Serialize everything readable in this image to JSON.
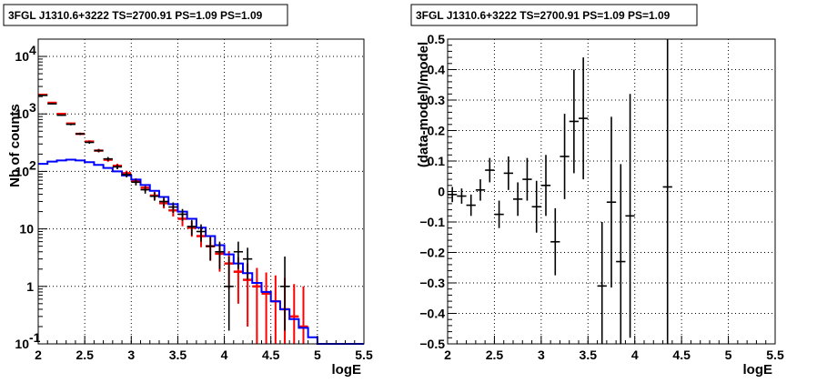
{
  "chart_data": [
    {
      "type": "line",
      "title": "3FGL J1310.6+3222 TS=2700.91 PS=1.09 PS=1.09",
      "xlabel": "logE",
      "ylabel": "Nb of counts",
      "xlim": [
        2,
        5.5
      ],
      "ylim": [
        0.1,
        20000
      ],
      "yscale": "log",
      "grid": true,
      "xticks": [
        "2",
        "2.5",
        "3",
        "3.5",
        "4",
        "4.5",
        "5",
        "5.5"
      ],
      "yticks": [
        {
          "value": 0.1,
          "label": "10",
          "exp": "-1"
        },
        {
          "value": 1,
          "label": "1",
          "exp": ""
        },
        {
          "value": 10,
          "label": "10",
          "exp": ""
        },
        {
          "value": 100,
          "label": "10",
          "exp": "2"
        },
        {
          "value": 1000,
          "label": "10",
          "exp": "3"
        },
        {
          "value": 10000,
          "label": "10",
          "exp": "4"
        }
      ],
      "bin_edges": [
        2.0,
        2.1,
        2.2,
        2.3,
        2.4,
        2.5,
        2.6,
        2.7,
        2.8,
        2.9,
        3.0,
        3.1,
        3.2,
        3.3,
        3.4,
        3.5,
        3.6,
        3.7,
        3.8,
        3.9,
        4.0,
        4.1,
        4.2,
        4.3,
        4.4,
        4.5,
        4.6,
        4.7,
        4.8,
        4.9,
        5.0,
        5.1,
        5.2,
        5.3,
        5.4,
        5.5
      ],
      "series": [
        {
          "role": "data",
          "color": "#000000",
          "x": [
            2.05,
            2.15,
            2.25,
            2.35,
            2.45,
            2.55,
            2.65,
            2.75,
            2.85,
            2.95,
            3.05,
            3.15,
            3.25,
            3.35,
            3.45,
            3.55,
            3.65,
            3.75,
            3.85,
            3.95,
            4.05,
            4.15,
            4.25,
            4.35,
            4.45,
            4.55,
            4.65,
            4.75,
            4.85
          ],
          "y": [
            2100,
            1500,
            950,
            660,
            450,
            320,
            230,
            165,
            120,
            88,
            65,
            48,
            37,
            30,
            24,
            18,
            11,
            9,
            5,
            4,
            1,
            4,
            3,
            1,
            1,
            1,
            1,
            1,
            1
          ],
          "err_low": [
            46,
            39,
            31,
            26,
            21,
            18,
            15,
            13,
            11,
            9.4,
            8,
            6.9,
            6.1,
            5.5,
            4.9,
            4.2,
            3.3,
            3,
            2.2,
            2,
            0.83,
            2,
            1.7,
            0.83,
            0.83,
            0.83,
            0.83,
            0.83,
            0.83
          ],
          "err_high": [
            46,
            39,
            31,
            26,
            21,
            18,
            15,
            13,
            11,
            9.4,
            8,
            6.9,
            6.1,
            5.5,
            4.9,
            4.2,
            3.3,
            3,
            2.2,
            2,
            2.3,
            2,
            1.7,
            2.3,
            2.3,
            2.3,
            2.3,
            2.3,
            2.3
          ],
          "shown": [
            true,
            true,
            true,
            true,
            true,
            true,
            true,
            true,
            true,
            true,
            true,
            true,
            true,
            true,
            true,
            true,
            true,
            true,
            true,
            true,
            true,
            true,
            true,
            false,
            false,
            false,
            true,
            false,
            false
          ]
        },
        {
          "role": "model-total",
          "color": "#ff0000",
          "x": [
            2.05,
            2.15,
            2.25,
            2.35,
            2.45,
            2.55,
            2.65,
            2.75,
            2.85,
            2.95,
            3.05,
            3.15,
            3.25,
            3.35,
            3.45,
            3.55,
            3.65,
            3.75,
            3.85,
            3.95,
            4.05,
            4.15,
            4.25,
            4.35,
            4.45,
            4.55,
            4.65,
            4.75,
            4.85
          ],
          "y": [
            2150,
            1560,
            1000,
            680,
            450,
            330,
            230,
            160,
            125,
            93,
            68,
            52,
            38,
            28,
            21,
            15,
            10.5,
            7.5,
            5,
            3.7,
            2.5,
            1.8,
            1.3,
            1,
            0.75,
            0.55,
            0.4,
            0.3,
            0.2
          ],
          "err_low": [
            46,
            40,
            32,
            26,
            21,
            18,
            15,
            13,
            11,
            9.6,
            8.2,
            7.2,
            6.2,
            5.3,
            4.6,
            3.9,
            3.2,
            2.7,
            2.2,
            1.9,
            1.6,
            1.3,
            1.1,
            0.9,
            0.7,
            0.5,
            0.35,
            0.25,
            0.15
          ],
          "err_high": [
            46,
            40,
            32,
            26,
            21,
            18,
            15,
            13,
            11,
            9.6,
            8.2,
            7.2,
            6.2,
            5.3,
            4.6,
            3.9,
            3.2,
            2.7,
            2.2,
            1.9,
            1.6,
            1.4,
            1.2,
            1.1,
            1,
            1,
            1,
            0.8,
            0.8
          ]
        },
        {
          "role": "model-source",
          "color": "#0000ff",
          "x": [
            2.05,
            2.15,
            2.25,
            2.35,
            2.45,
            2.55,
            2.65,
            2.75,
            2.85,
            2.95,
            3.05,
            3.15,
            3.25,
            3.35,
            3.45,
            3.55,
            3.65,
            3.75,
            3.85,
            3.95,
            4.05,
            4.15,
            4.25,
            4.35,
            4.45,
            4.55,
            4.65,
            4.75,
            4.85,
            4.95,
            5.05,
            5.15,
            5.25,
            5.35,
            5.45
          ],
          "y": [
            135,
            148,
            155,
            160,
            155,
            145,
            130,
            115,
            100,
            85,
            72,
            58,
            46,
            36,
            27,
            20,
            15,
            10.5,
            7.5,
            5.2,
            3.6,
            2.5,
            1.7,
            1.15,
            0.8,
            0.55,
            0.4,
            0.27,
            0.19,
            0.13,
            0.1,
            0.1,
            0.1,
            0.1,
            0.1
          ]
        }
      ]
    },
    {
      "type": "scatter",
      "title": "3FGL J1310.6+3222 TS=2700.91 PS=1.09 PS=1.09",
      "xlabel": "logE",
      "ylabel": "(data-model)/model",
      "xlim": [
        2,
        5.5
      ],
      "ylim": [
        -0.5,
        0.5
      ],
      "grid": true,
      "xticks": [
        "2",
        "2.5",
        "3",
        "3.5",
        "4",
        "4.5",
        "5",
        "5.5"
      ],
      "yticks": [
        "−0.5",
        "−0.4",
        "−0.3",
        "−0.2",
        "−0.1",
        "0",
        "0.1",
        "0.2",
        "0.3",
        "0.4",
        "0.5"
      ],
      "series": [
        {
          "color": "#000000",
          "x": [
            2.05,
            2.15,
            2.25,
            2.35,
            2.45,
            2.55,
            2.65,
            2.75,
            2.85,
            2.95,
            3.05,
            3.15,
            3.25,
            3.35,
            3.45,
            3.65,
            3.75,
            3.85,
            3.95,
            4.35
          ],
          "y": [
            -0.01,
            -0.015,
            -0.045,
            0.005,
            0.07,
            -0.075,
            0.06,
            -0.025,
            0.04,
            -0.05,
            0.02,
            -0.165,
            0.115,
            0.23,
            0.24,
            -0.31,
            -0.035,
            -0.23,
            -0.08,
            0.015
          ],
          "err": [
            0.025,
            0.025,
            0.035,
            0.035,
            0.04,
            0.045,
            0.055,
            0.055,
            0.07,
            0.085,
            0.1,
            0.11,
            0.14,
            0.17,
            0.2,
            0.21,
            0.28,
            0.32,
            0.4,
            0.55
          ]
        }
      ]
    }
  ]
}
